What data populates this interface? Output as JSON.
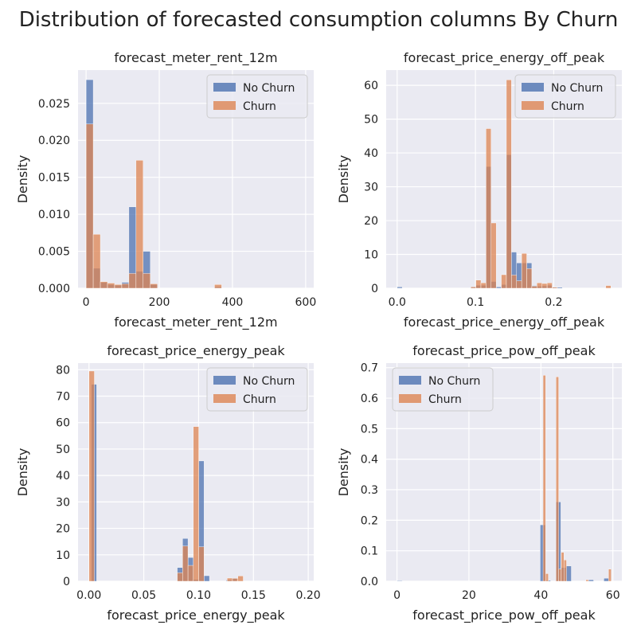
{
  "figure": {
    "title": "Distribution of forecasted consumption columns By Churn"
  },
  "colors": {
    "no_churn": "#4c72b0",
    "churn": "#dd8452",
    "axes_bg": "#eaeaf2",
    "grid": "#ffffff"
  },
  "chart_data": [
    {
      "type": "bar",
      "title": "forecast_meter_rent_12m",
      "xlabel": "forecast_meter_rent_12m",
      "ylabel": "Density",
      "xlim": [
        -22,
        622
      ],
      "ylim": [
        0,
        0.0295
      ],
      "xticks": [
        0,
        200,
        400,
        600
      ],
      "xtick_labels": [
        "0",
        "200",
        "400",
        "600"
      ],
      "yticks": [
        0,
        0.005,
        0.01,
        0.015,
        0.02,
        0.025
      ],
      "ytick_labels": [
        "0.000",
        "0.005",
        "0.010",
        "0.015",
        "0.020",
        "0.025"
      ],
      "legend": {
        "position": "top-right",
        "entries": [
          "No Churn",
          "Churn"
        ]
      },
      "series": [
        {
          "name": "No Churn",
          "bin_width": 19.5,
          "x": [
            0,
            19.5,
            39,
            58.5,
            78,
            97.5,
            117,
            136.5,
            156,
            175.5,
            351
          ],
          "values": [
            0.0282,
            0.0027,
            0.0008,
            0.0005,
            0.0004,
            0.0008,
            0.011,
            0.0023,
            0.005,
            0.0005,
            0.0002
          ]
        },
        {
          "name": "Churn",
          "bin_width": 19.5,
          "x": [
            0,
            19.5,
            39,
            58.5,
            78,
            97.5,
            117,
            136.5,
            156,
            175.5,
            351
          ],
          "values": [
            0.0222,
            0.0073,
            0.0009,
            0.0007,
            0.0005,
            0.0006,
            0.002,
            0.0173,
            0.002,
            0.0006,
            0.0005
          ]
        }
      ]
    },
    {
      "type": "bar",
      "title": "forecast_price_energy_off_peak",
      "xlabel": "forecast_price_energy_off_peak",
      "ylabel": "Density",
      "xlim": [
        -0.014,
        0.287
      ],
      "ylim": [
        0,
        64.5
      ],
      "xticks": [
        0,
        0.1,
        0.2
      ],
      "xtick_labels": [
        "0.0",
        "0.1",
        "0.2"
      ],
      "yticks": [
        0,
        10,
        20,
        30,
        40,
        50,
        60
      ],
      "ytick_labels": [
        "0",
        "10",
        "20",
        "30",
        "40",
        "50",
        "60"
      ],
      "legend": {
        "position": "top-right",
        "entries": [
          "No Churn",
          "Churn"
        ]
      },
      "series": [
        {
          "name": "No Churn",
          "bin_width": 0.0065,
          "x": [
            0,
            0.094,
            0.1005,
            0.107,
            0.1135,
            0.12,
            0.1265,
            0.133,
            0.1395,
            0.146,
            0.1525,
            0.159,
            0.1655,
            0.172,
            0.1785,
            0.185,
            0.1915,
            0.198,
            0.2045
          ],
          "values": [
            0.4,
            0.4,
            0.9,
            0.9,
            36,
            2,
            0.4,
            1.1,
            39.5,
            10.7,
            7.5,
            7.5,
            7.5,
            0.8,
            0.6,
            0.7,
            0.9,
            0.4,
            0.3
          ]
        },
        {
          "name": "Churn",
          "bin_width": 0.0065,
          "x": [
            0.094,
            0.1005,
            0.107,
            0.1135,
            0.12,
            0.133,
            0.1395,
            0.146,
            0.1525,
            0.159,
            0.1655,
            0.172,
            0.1785,
            0.185,
            0.1915,
            0.198,
            0.2665
          ],
          "values": [
            0.4,
            2.4,
            1.6,
            47.2,
            19.3,
            4,
            61.6,
            3.9,
            2.2,
            10.3,
            5.8,
            0.6,
            1.6,
            1.4,
            1.6,
            0.3,
            0.8
          ]
        }
      ]
    },
    {
      "type": "bar",
      "title": "forecast_price_energy_peak",
      "xlabel": "forecast_price_energy_peak",
      "ylabel": "Density",
      "xlim": [
        -0.01,
        0.205
      ],
      "ylim": [
        0,
        82.5
      ],
      "xticks": [
        0,
        0.05,
        0.1,
        0.15,
        0.2
      ],
      "xtick_labels": [
        "0.00",
        "0.05",
        "0.10",
        "0.15",
        "0.20"
      ],
      "yticks": [
        0,
        10,
        20,
        30,
        40,
        50,
        60,
        70,
        80
      ],
      "ytick_labels": [
        "0",
        "10",
        "20",
        "30",
        "40",
        "50",
        "60",
        "70",
        "80"
      ],
      "legend": {
        "position": "top-right",
        "entries": [
          "No Churn",
          "Churn"
        ]
      },
      "series": [
        {
          "name": "No Churn",
          "bin_width": 0.0049,
          "x": [
            0.0021,
            0.0805,
            0.0854,
            0.0903,
            0.0952,
            0.1001,
            0.105,
            0.1253,
            0.1302
          ],
          "values": [
            74.5,
            5.2,
            16.2,
            9,
            0.7,
            45.5,
            2.1,
            0.5,
            1.1
          ]
        },
        {
          "name": "Churn",
          "bin_width": 0.0049,
          "x": [
            0,
            0.0805,
            0.0854,
            0.0903,
            0.0952,
            0.1001,
            0.126,
            0.1309,
            0.1358
          ],
          "values": [
            79.5,
            3.2,
            13.3,
            6,
            58.5,
            13,
            1.2,
            1.1,
            2
          ]
        }
      ]
    },
    {
      "type": "bar",
      "title": "forecast_price_pow_off_peak",
      "xlabel": "forecast_price_pow_off_peak",
      "ylabel": "Density",
      "xlim": [
        -3,
        62.5
      ],
      "ylim": [
        0,
        0.715
      ],
      "xticks": [
        0,
        20,
        40,
        60
      ],
      "xtick_labels": [
        "0",
        "20",
        "40",
        "60"
      ],
      "yticks": [
        0,
        0.1,
        0.2,
        0.3,
        0.4,
        0.5,
        0.6,
        0.7
      ],
      "ytick_labels": [
        "0.0",
        "0.1",
        "0.2",
        "0.3",
        "0.4",
        "0.5",
        "0.6",
        "0.7"
      ],
      "legend": {
        "position": "top-left",
        "entries": [
          "No Churn",
          "Churn"
        ]
      },
      "series": [
        {
          "name": "No Churn",
          "bin_width": 1.45,
          "x": [
            0,
            39.8,
            41.25,
            44.1,
            45.55,
            47.0,
            53.2,
            57.5
          ],
          "values": [
            0.002,
            0.185,
            0.003,
            0.26,
            0.045,
            0.05,
            0.005,
            0.01
          ]
        },
        {
          "name": "Churn",
          "bin_width": 0.73,
          "x": [
            40.6,
            41.33,
            44.2,
            44.93,
            45.66,
            46.39,
            52.5,
            58.8
          ],
          "values": [
            0.675,
            0.025,
            0.67,
            0.04,
            0.095,
            0.07,
            0.005,
            0.04
          ]
        }
      ]
    }
  ]
}
